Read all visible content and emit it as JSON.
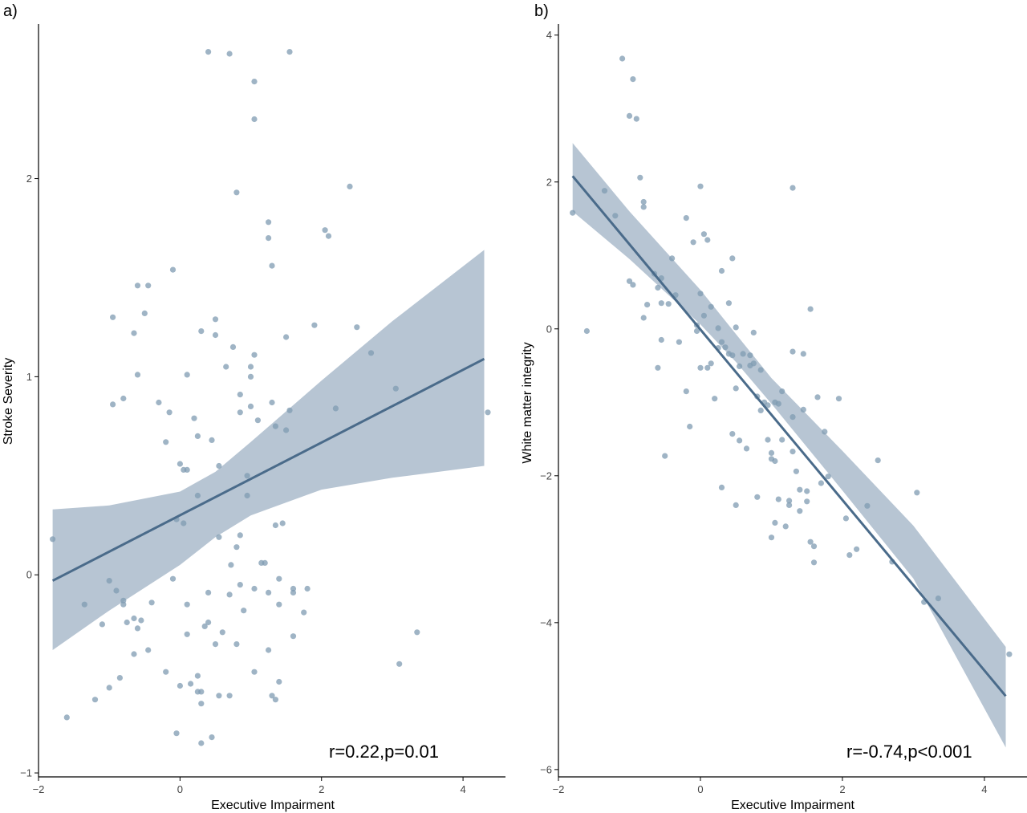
{
  "chart_data": [
    {
      "type": "scatter",
      "panel": "a)",
      "xlabel": "Executive Impairment",
      "ylabel": "Stroke Severity",
      "xlim": [
        -2.0,
        4.6
      ],
      "ylim": [
        -1.02,
        2.78
      ],
      "xticks": [
        -2,
        0,
        2,
        4
      ],
      "yticks": [
        -1,
        0,
        1,
        2
      ],
      "annotation": "r=0.22,p=0.01",
      "fit": {
        "x": [
          -1.8,
          4.3
        ],
        "y": [
          -0.03,
          1.09
        ]
      },
      "band": {
        "x": [
          -1.8,
          -1.0,
          0.0,
          0.5,
          1.0,
          2.0,
          3.0,
          4.3
        ],
        "lo": [
          -0.38,
          -0.18,
          0.05,
          0.19,
          0.3,
          0.43,
          0.49,
          0.55
        ],
        "hi": [
          0.33,
          0.35,
          0.42,
          0.52,
          0.67,
          0.98,
          1.28,
          1.64
        ]
      },
      "points": [
        [
          -1.8,
          0.18
        ],
        [
          -1.6,
          -0.72
        ],
        [
          -1.35,
          -0.15
        ],
        [
          -1.2,
          -0.63
        ],
        [
          -1.1,
          -0.25
        ],
        [
          -1.0,
          -0.57
        ],
        [
          -1.0,
          -0.03
        ],
        [
          -0.95,
          0.86
        ],
        [
          -0.95,
          1.3
        ],
        [
          -0.9,
          -0.08
        ],
        [
          -0.85,
          -0.52
        ],
        [
          -0.8,
          0.89
        ],
        [
          -0.8,
          -0.13
        ],
        [
          -0.8,
          -0.15
        ],
        [
          -0.75,
          -0.24
        ],
        [
          -0.65,
          -0.4
        ],
        [
          -0.65,
          -0.22
        ],
        [
          -0.65,
          1.22
        ],
        [
          -0.6,
          -0.27
        ],
        [
          -0.6,
          1.01
        ],
        [
          -0.6,
          1.46
        ],
        [
          -0.55,
          -0.23
        ],
        [
          -0.5,
          1.32
        ],
        [
          -0.45,
          1.46
        ],
        [
          -0.45,
          -0.38
        ],
        [
          -0.4,
          -0.14
        ],
        [
          -0.3,
          0.87
        ],
        [
          -0.2,
          0.67
        ],
        [
          -0.2,
          -0.49
        ],
        [
          -0.15,
          0.82
        ],
        [
          -0.1,
          1.54
        ],
        [
          -0.1,
          -0.02
        ],
        [
          -0.05,
          0.28
        ],
        [
          -0.05,
          -0.8
        ],
        [
          0.0,
          0.56
        ],
        [
          0.0,
          -0.56
        ],
        [
          0.05,
          0.53
        ],
        [
          0.05,
          0.26
        ],
        [
          0.1,
          -0.3
        ],
        [
          0.1,
          -0.15
        ],
        [
          0.1,
          1.01
        ],
        [
          0.1,
          0.53
        ],
        [
          0.15,
          -0.55
        ],
        [
          0.2,
          0.79
        ],
        [
          0.25,
          -0.51
        ],
        [
          0.25,
          0.7
        ],
        [
          0.25,
          -0.59
        ],
        [
          0.25,
          0.4
        ],
        [
          0.3,
          1.23
        ],
        [
          0.3,
          -0.59
        ],
        [
          0.3,
          -0.65
        ],
        [
          0.3,
          -0.85
        ],
        [
          0.35,
          -0.26
        ],
        [
          0.4,
          -0.24
        ],
        [
          0.4,
          -0.09
        ],
        [
          0.4,
          2.64
        ],
        [
          0.45,
          0.68
        ],
        [
          0.45,
          -0.82
        ],
        [
          0.5,
          -0.35
        ],
        [
          0.5,
          1.29
        ],
        [
          0.5,
          1.21
        ],
        [
          0.55,
          0.55
        ],
        [
          0.55,
          0.19
        ],
        [
          0.55,
          -0.61
        ],
        [
          0.6,
          -0.29
        ],
        [
          0.65,
          1.05
        ],
        [
          0.7,
          -0.1
        ],
        [
          0.7,
          -0.61
        ],
        [
          0.7,
          2.63
        ],
        [
          0.72,
          0.05
        ],
        [
          0.75,
          1.15
        ],
        [
          0.8,
          -0.35
        ],
        [
          0.8,
          1.93
        ],
        [
          0.8,
          0.14
        ],
        [
          0.85,
          0.91
        ],
        [
          0.85,
          0.82
        ],
        [
          0.85,
          0.2
        ],
        [
          0.85,
          -0.05
        ],
        [
          0.9,
          -0.18
        ],
        [
          0.95,
          0.5
        ],
        [
          0.95,
          0.4
        ],
        [
          1.0,
          0.85
        ],
        [
          1.0,
          1.05
        ],
        [
          1.0,
          1.0
        ],
        [
          1.05,
          -0.07
        ],
        [
          1.05,
          1.11
        ],
        [
          1.05,
          -0.49
        ],
        [
          1.05,
          2.49
        ],
        [
          1.05,
          2.3
        ],
        [
          1.1,
          0.78
        ],
        [
          1.15,
          0.06
        ],
        [
          1.2,
          0.06
        ],
        [
          1.25,
          -0.09
        ],
        [
          1.25,
          -0.38
        ],
        [
          1.25,
          1.78
        ],
        [
          1.25,
          1.7
        ],
        [
          1.3,
          0.87
        ],
        [
          1.3,
          1.56
        ],
        [
          1.3,
          -0.61
        ],
        [
          1.35,
          0.25
        ],
        [
          1.35,
          -0.63
        ],
        [
          1.35,
          0.75
        ],
        [
          1.4,
          -0.02
        ],
        [
          1.4,
          -0.15
        ],
        [
          1.4,
          -0.54
        ],
        [
          1.45,
          0.26
        ],
        [
          1.5,
          1.2
        ],
        [
          1.5,
          0.73
        ],
        [
          1.55,
          0.83
        ],
        [
          1.55,
          2.64
        ],
        [
          1.6,
          -0.09
        ],
        [
          1.6,
          -0.31
        ],
        [
          1.6,
          -0.07
        ],
        [
          1.75,
          -0.19
        ],
        [
          1.8,
          -0.07
        ],
        [
          1.9,
          1.26
        ],
        [
          2.05,
          1.74
        ],
        [
          2.1,
          1.71
        ],
        [
          2.2,
          0.84
        ],
        [
          2.4,
          1.96
        ],
        [
          2.5,
          1.25
        ],
        [
          2.7,
          1.12
        ],
        [
          3.05,
          0.94
        ],
        [
          3.1,
          -0.45
        ],
        [
          3.35,
          -0.29
        ],
        [
          4.35,
          0.82
        ]
      ]
    },
    {
      "type": "scatter",
      "panel": "b)",
      "xlabel": "Executive Impairment",
      "ylabel": "White matter integrity",
      "xlim": [
        -2.0,
        4.6
      ],
      "ylim": [
        -6.1,
        4.15
      ],
      "xticks": [
        -2,
        0,
        2,
        4
      ],
      "yticks": [
        -6,
        -4,
        -2,
        0,
        2,
        4
      ],
      "annotation": "r=-0.74,p<0.001",
      "fit": {
        "x": [
          -1.8,
          4.3
        ],
        "y": [
          2.08,
          -5.0
        ]
      },
      "band": {
        "x": [
          -1.8,
          -1.0,
          0.0,
          0.5,
          1.0,
          2.0,
          3.0,
          4.3
        ],
        "lo": [
          1.6,
          0.95,
          0.06,
          -0.45,
          -1.02,
          -2.2,
          -3.4,
          -5.7
        ],
        "hi": [
          2.53,
          1.6,
          0.53,
          -0.07,
          -0.67,
          -1.66,
          -2.68,
          -4.33
        ]
      },
      "points": [
        [
          -1.8,
          1.58
        ],
        [
          -1.6,
          -0.03
        ],
        [
          -1.35,
          1.88
        ],
        [
          -1.2,
          1.54
        ],
        [
          -1.1,
          3.68
        ],
        [
          -1.0,
          0.65
        ],
        [
          -1.0,
          2.9
        ],
        [
          -0.95,
          0.6
        ],
        [
          -0.95,
          3.4
        ],
        [
          -0.9,
          2.86
        ],
        [
          -0.85,
          2.06
        ],
        [
          -0.8,
          1.73
        ],
        [
          -0.8,
          1.66
        ],
        [
          -0.8,
          0.15
        ],
        [
          -0.75,
          0.33
        ],
        [
          -0.65,
          0.75
        ],
        [
          -0.6,
          0.56
        ],
        [
          -0.6,
          -0.53
        ],
        [
          -0.55,
          0.69
        ],
        [
          -0.55,
          0.35
        ],
        [
          -0.55,
          -0.15
        ],
        [
          -0.5,
          -1.73
        ],
        [
          -0.45,
          0.34
        ],
        [
          -0.4,
          0.96
        ],
        [
          -0.35,
          0.46
        ],
        [
          -0.3,
          -0.18
        ],
        [
          -0.2,
          1.51
        ],
        [
          -0.2,
          -0.85
        ],
        [
          -0.15,
          -1.33
        ],
        [
          -0.1,
          1.18
        ],
        [
          -0.05,
          0.05
        ],
        [
          -0.05,
          -0.03
        ],
        [
          0.0,
          0.48
        ],
        [
          0.0,
          1.94
        ],
        [
          0.0,
          -0.53
        ],
        [
          0.05,
          1.29
        ],
        [
          0.05,
          0.18
        ],
        [
          0.1,
          1.21
        ],
        [
          0.1,
          -0.53
        ],
        [
          0.15,
          0.3
        ],
        [
          0.15,
          -0.47
        ],
        [
          0.2,
          -0.95
        ],
        [
          0.25,
          0.01
        ],
        [
          0.25,
          -0.26
        ],
        [
          0.3,
          0.79
        ],
        [
          0.3,
          -0.18
        ],
        [
          0.3,
          -2.16
        ],
        [
          0.35,
          -0.25
        ],
        [
          0.4,
          -0.34
        ],
        [
          0.4,
          0.35
        ],
        [
          0.45,
          0.96
        ],
        [
          0.45,
          -1.43
        ],
        [
          0.45,
          -0.36
        ],
        [
          0.5,
          0.02
        ],
        [
          0.5,
          -0.81
        ],
        [
          0.5,
          -2.4
        ],
        [
          0.55,
          -0.51
        ],
        [
          0.55,
          -1.52
        ],
        [
          0.6,
          -0.34
        ],
        [
          0.65,
          -1.63
        ],
        [
          0.7,
          -0.36
        ],
        [
          0.7,
          -0.5
        ],
        [
          0.75,
          -0.47
        ],
        [
          0.75,
          -0.05
        ],
        [
          0.8,
          -0.92
        ],
        [
          0.8,
          -2.29
        ],
        [
          0.85,
          -1.11
        ],
        [
          0.85,
          -0.56
        ],
        [
          0.9,
          -1.0
        ],
        [
          0.95,
          -1.04
        ],
        [
          0.95,
          -1.51
        ],
        [
          1.0,
          -1.69
        ],
        [
          1.0,
          -2.84
        ],
        [
          1.0,
          -1.77
        ],
        [
          1.05,
          -1.0
        ],
        [
          1.05,
          -1.8
        ],
        [
          1.05,
          -2.64
        ],
        [
          1.1,
          -1.02
        ],
        [
          1.1,
          -2.32
        ],
        [
          1.15,
          -0.85
        ],
        [
          1.15,
          -1.51
        ],
        [
          1.2,
          -2.69
        ],
        [
          1.25,
          -2.4
        ],
        [
          1.25,
          -2.34
        ],
        [
          1.3,
          -0.31
        ],
        [
          1.3,
          -1.2
        ],
        [
          1.3,
          1.92
        ],
        [
          1.3,
          -1.67
        ],
        [
          1.35,
          -1.94
        ],
        [
          1.4,
          -2.19
        ],
        [
          1.4,
          -2.48
        ],
        [
          1.45,
          -0.34
        ],
        [
          1.45,
          -1.1
        ],
        [
          1.5,
          -2.21
        ],
        [
          1.5,
          -2.35
        ],
        [
          1.55,
          0.27
        ],
        [
          1.55,
          -2.9
        ],
        [
          1.6,
          -2.96
        ],
        [
          1.6,
          -3.18
        ],
        [
          1.65,
          -0.93
        ],
        [
          1.7,
          -2.1
        ],
        [
          1.75,
          -1.4
        ],
        [
          1.8,
          -2.01
        ],
        [
          1.95,
          -0.95
        ],
        [
          2.05,
          -2.58
        ],
        [
          2.1,
          -3.08
        ],
        [
          2.2,
          -3.0
        ],
        [
          2.35,
          -2.41
        ],
        [
          2.5,
          -1.79
        ],
        [
          2.7,
          -3.17
        ],
        [
          3.05,
          -2.23
        ],
        [
          3.15,
          -3.72
        ],
        [
          3.35,
          -3.67
        ],
        [
          4.35,
          -4.43
        ]
      ]
    }
  ]
}
